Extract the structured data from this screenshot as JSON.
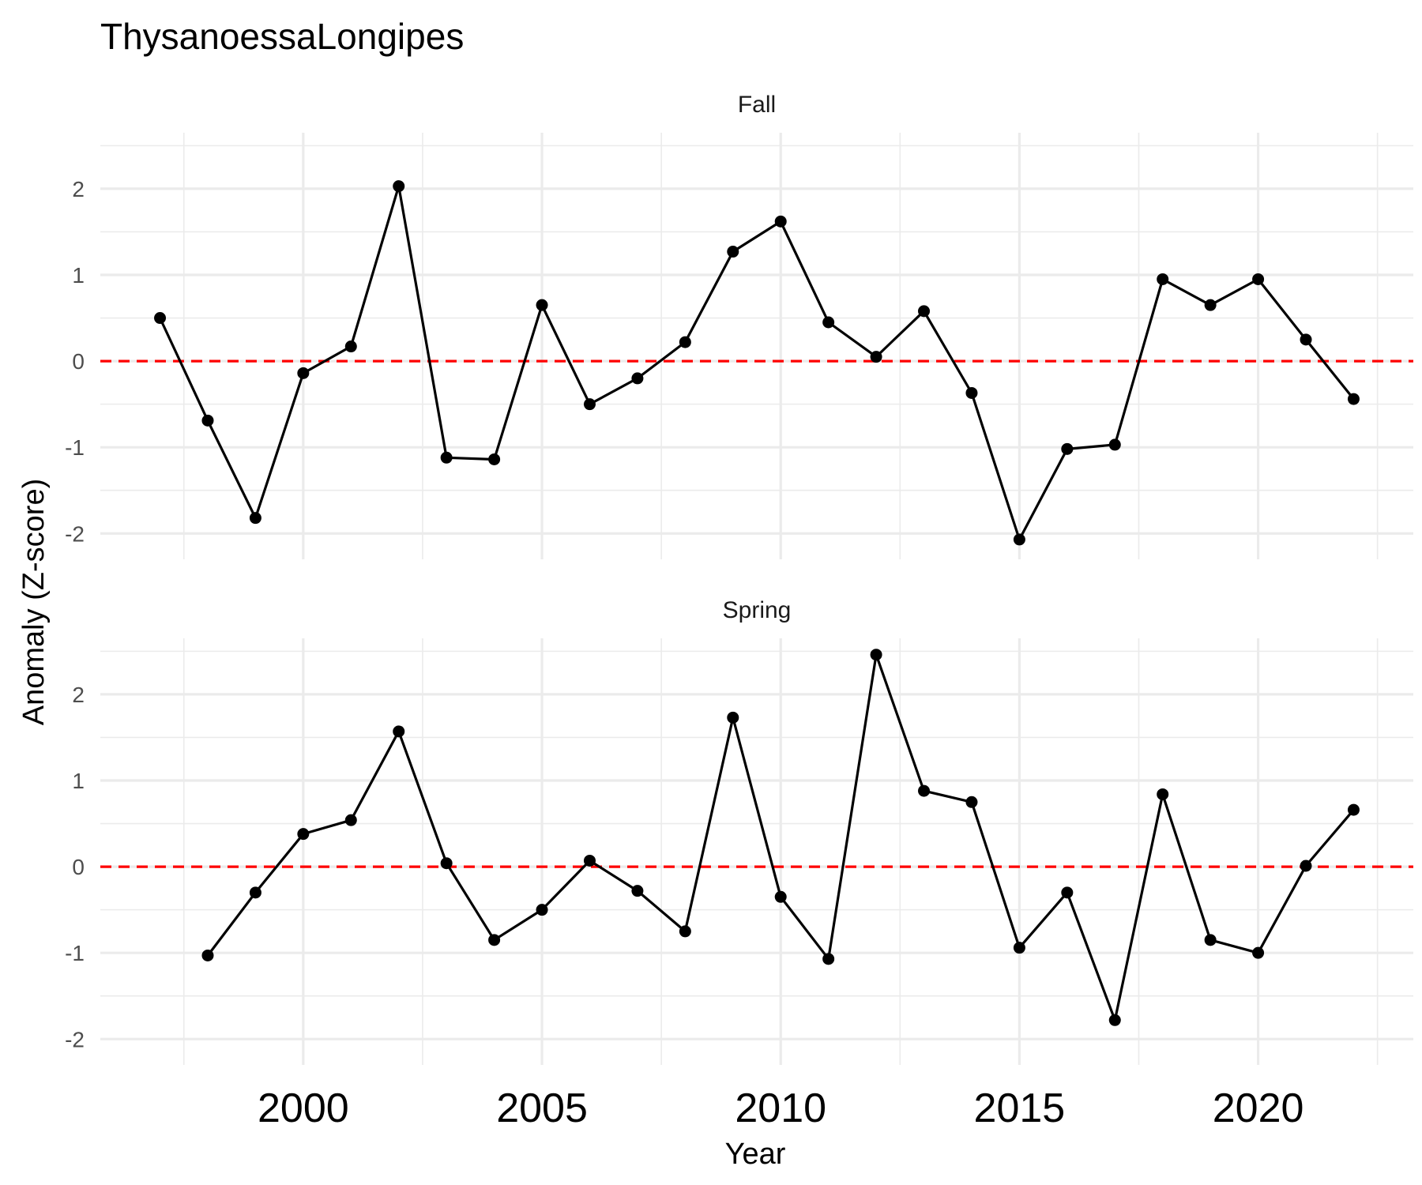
{
  "chart_data": {
    "type": "line",
    "title": "ThysanoessaLongipes",
    "xlabel": "Year",
    "ylabel": "Anomaly (Z-score)",
    "x_ticks": [
      "2000",
      "2005",
      "2010",
      "2015",
      "2020"
    ],
    "x_tick_values": [
      2000,
      2005,
      2010,
      2015,
      2020
    ],
    "xlim": [
      1995.75,
      2023.25
    ],
    "y_ticks": [
      "-2",
      "-1",
      "0",
      "1",
      "2"
    ],
    "y_tick_values": [
      -2,
      -1,
      0,
      1,
      2
    ],
    "ylim": [
      -2.3,
      2.65
    ],
    "reference_line": {
      "y": 0,
      "color": "#ff0000",
      "style": "dashed"
    },
    "grid": true,
    "line_color": "#000000",
    "panels": [
      {
        "name": "Fall",
        "x": [
          1997,
          1998,
          1999,
          2000,
          2001,
          2002,
          2003,
          2004,
          2005,
          2006,
          2007,
          2008,
          2009,
          2010,
          2011,
          2012,
          2013,
          2014,
          2015,
          2016,
          2017,
          2018,
          2019,
          2020,
          2021,
          2022
        ],
        "values": [
          0.5,
          -0.69,
          -1.82,
          -0.14,
          0.17,
          2.03,
          -1.12,
          -1.14,
          0.65,
          -0.5,
          -0.2,
          0.22,
          1.27,
          1.62,
          0.45,
          0.05,
          0.58,
          -0.37,
          -2.07,
          -1.02,
          -0.97,
          0.95,
          0.65,
          0.95,
          0.25,
          -0.44
        ]
      },
      {
        "name": "Spring",
        "x": [
          1998,
          1999,
          2000,
          2001,
          2002,
          2003,
          2004,
          2005,
          2006,
          2007,
          2008,
          2009,
          2010,
          2011,
          2012,
          2013,
          2014,
          2015,
          2016,
          2017,
          2018,
          2019,
          2020,
          2021,
          2022
        ],
        "values": [
          -1.03,
          -0.3,
          0.38,
          0.54,
          1.57,
          0.04,
          -0.85,
          -0.5,
          0.07,
          -0.28,
          -0.75,
          1.73,
          -0.35,
          -1.07,
          2.46,
          0.88,
          0.75,
          -0.94,
          -0.3,
          -1.78,
          0.84,
          -0.85,
          -1.0,
          0.01,
          0.66
        ]
      }
    ]
  }
}
